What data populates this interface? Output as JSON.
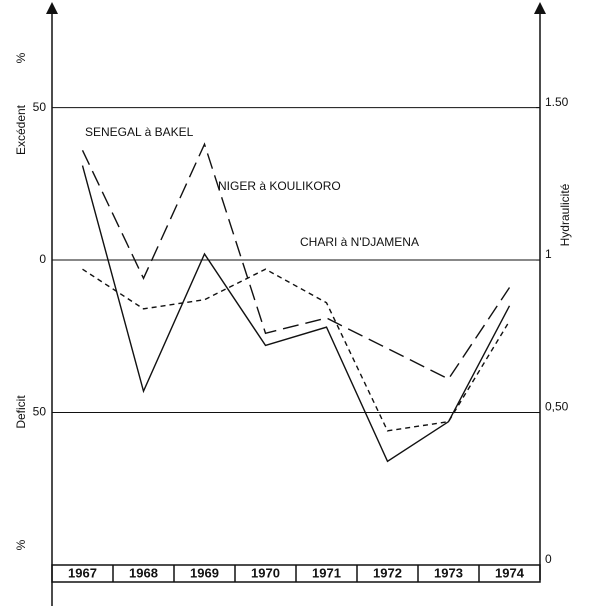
{
  "chart_data": {
    "type": "line",
    "y_label_top": "Excédent",
    "y_label_bottom": "Deficit",
    "y_unit": "%",
    "y2_label": "Hydraulicité",
    "categories": [
      "1967",
      "1968",
      "1969",
      "1970",
      "1971",
      "1972",
      "1973",
      "1974"
    ],
    "series": [
      {
        "name": "SENEGAL à BAKEL",
        "color": "#111111",
        "line_style": "solid",
        "values": [
          31,
          -43,
          2,
          -28,
          -22,
          -66,
          -53,
          -15
        ]
      },
      {
        "name": "NIGER à KOULIKORO",
        "color": "#111111",
        "line_style": "long-dash",
        "values": [
          36,
          -6,
          38,
          -24,
          -19,
          -29,
          -39,
          -9
        ]
      },
      {
        "name": "CHARI à N'DJAMENA",
        "color": "#111111",
        "line_style": "short-dash",
        "values": [
          -3,
          -16,
          -13,
          -3,
          -14,
          -56,
          -53,
          -20
        ]
      }
    ],
    "ylim": [
      -100,
      82
    ],
    "yticks": [
      {
        "value": 50,
        "label": "50"
      },
      0,
      {
        "value": -50,
        "label": "50"
      }
    ],
    "y2lim": [
      0,
      1.82
    ],
    "y2ticks": [
      {
        "value": 1.5,
        "label": "1.50"
      },
      1,
      {
        "value": 0.5,
        "label": "0,50"
      },
      0
    ],
    "grid": true
  }
}
